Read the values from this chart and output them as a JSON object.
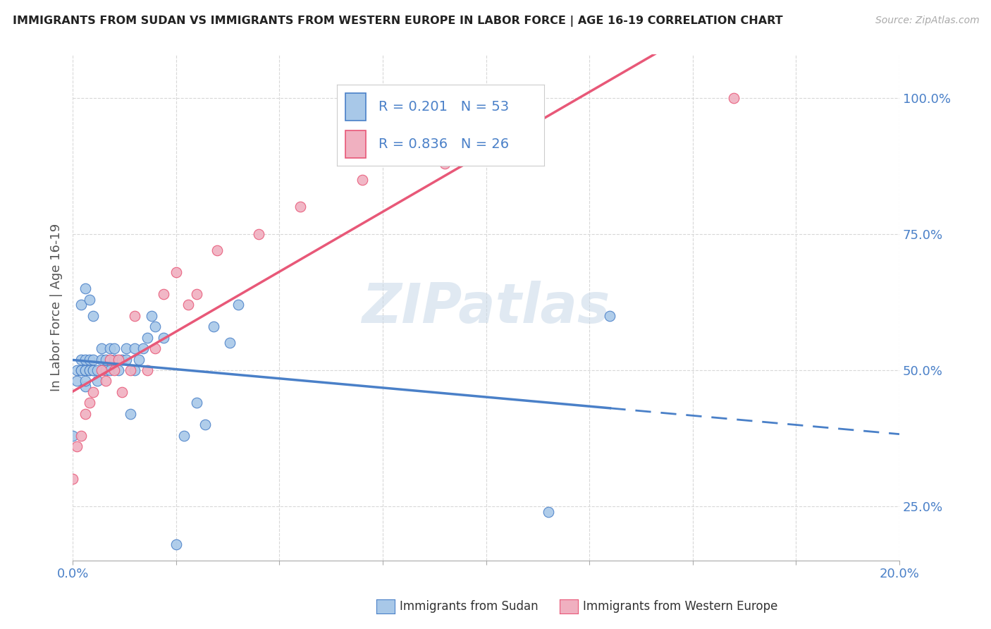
{
  "title": "IMMIGRANTS FROM SUDAN VS IMMIGRANTS FROM WESTERN EUROPE IN LABOR FORCE | AGE 16-19 CORRELATION CHART",
  "source": "Source: ZipAtlas.com",
  "ylabel": "In Labor Force | Age 16-19",
  "legend_label1": "Immigrants from Sudan",
  "legend_label2": "Immigrants from Western Europe",
  "r1": "0.201",
  "n1": "53",
  "r2": "0.836",
  "n2": "26",
  "color1": "#a8c8e8",
  "color2": "#f0b0c0",
  "line_color1": "#4a80c8",
  "line_color2": "#e85878",
  "xlim": [
    0.0,
    0.2
  ],
  "ylim": [
    0.15,
    1.08
  ],
  "x_ticks": [
    0.0,
    0.025,
    0.05,
    0.075,
    0.1,
    0.125,
    0.15,
    0.175,
    0.2
  ],
  "y_ticks": [
    0.25,
    0.5,
    0.75,
    1.0
  ],
  "y_tick_labels": [
    "25.0%",
    "50.0%",
    "75.0%",
    "100.0%"
  ],
  "sudan_x": [
    0.0,
    0.001,
    0.001,
    0.002,
    0.002,
    0.002,
    0.003,
    0.003,
    0.003,
    0.003,
    0.003,
    0.004,
    0.004,
    0.004,
    0.005,
    0.005,
    0.005,
    0.006,
    0.006,
    0.007,
    0.007,
    0.008,
    0.008,
    0.009,
    0.009,
    0.01,
    0.01,
    0.011,
    0.012,
    0.013,
    0.013,
    0.014,
    0.015,
    0.015,
    0.016,
    0.017,
    0.018,
    0.019,
    0.02,
    0.022,
    0.025,
    0.027,
    0.03,
    0.032,
    0.034,
    0.038,
    0.04,
    0.115,
    0.13,
    0.002,
    0.003,
    0.004,
    0.005
  ],
  "sudan_y": [
    0.38,
    0.48,
    0.5,
    0.5,
    0.5,
    0.52,
    0.47,
    0.48,
    0.5,
    0.5,
    0.52,
    0.5,
    0.5,
    0.52,
    0.5,
    0.5,
    0.52,
    0.5,
    0.48,
    0.52,
    0.54,
    0.5,
    0.52,
    0.5,
    0.54,
    0.52,
    0.54,
    0.5,
    0.52,
    0.52,
    0.54,
    0.42,
    0.5,
    0.54,
    0.52,
    0.54,
    0.56,
    0.6,
    0.58,
    0.56,
    0.18,
    0.38,
    0.44,
    0.4,
    0.58,
    0.55,
    0.62,
    0.24,
    0.6,
    0.62,
    0.65,
    0.63,
    0.6
  ],
  "europe_x": [
    0.0,
    0.001,
    0.002,
    0.003,
    0.004,
    0.005,
    0.007,
    0.008,
    0.009,
    0.01,
    0.011,
    0.012,
    0.014,
    0.015,
    0.018,
    0.02,
    0.022,
    0.025,
    0.028,
    0.03,
    0.035,
    0.045,
    0.055,
    0.07,
    0.09,
    0.16
  ],
  "europe_y": [
    0.3,
    0.36,
    0.38,
    0.42,
    0.44,
    0.46,
    0.5,
    0.48,
    0.52,
    0.5,
    0.52,
    0.46,
    0.5,
    0.6,
    0.5,
    0.54,
    0.64,
    0.68,
    0.62,
    0.64,
    0.72,
    0.75,
    0.8,
    0.85,
    0.88,
    1.0
  ],
  "watermark": "ZIPatlas",
  "background_color": "#ffffff",
  "grid_color": "#d8d8d8",
  "sudan_line_solid_end": 0.13,
  "sudan_line_dash_start": 0.13,
  "sudan_line_dash_end": 0.2
}
